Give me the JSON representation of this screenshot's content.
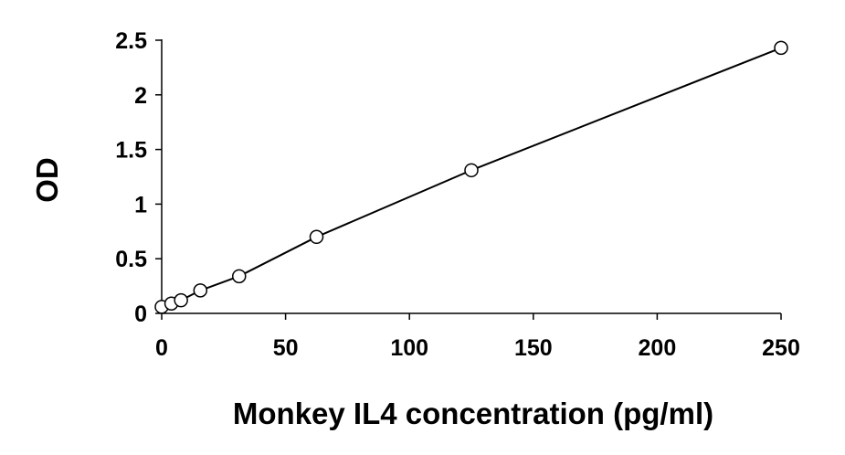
{
  "chart_data": {
    "type": "scatter",
    "xlabel": "Monkey IL4 concentration (pg/ml)",
    "ylabel": "OD",
    "xlim": [
      0,
      250
    ],
    "ylim": [
      0,
      2.5
    ],
    "x_ticks": [
      "0",
      "50",
      "100",
      "150",
      "200",
      "250"
    ],
    "y_ticks": [
      "0",
      "0.5",
      "1",
      "1.5",
      "2",
      "2.5"
    ],
    "grid": false,
    "legend": "none",
    "marker": "open-circle",
    "trendline": true,
    "series": [
      {
        "x": [
          0,
          3.9,
          7.8,
          15.6,
          31.25,
          62.5,
          125,
          250
        ],
        "y": [
          0.06,
          0.09,
          0.12,
          0.21,
          0.34,
          0.7,
          1.31,
          2.43
        ]
      }
    ]
  }
}
